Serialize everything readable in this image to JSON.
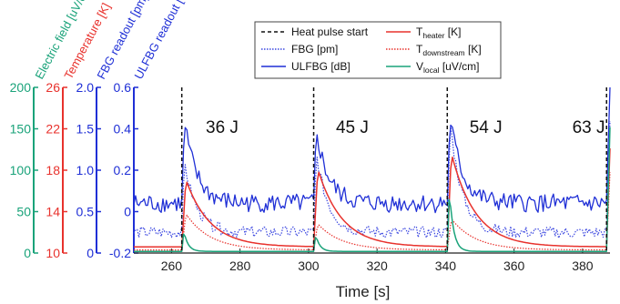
{
  "chart_data": {
    "type": "line",
    "xlabel": "Time [s]",
    "xlim": [
      249,
      388
    ],
    "x_ticks": [
      260,
      280,
      300,
      320,
      340,
      360,
      380
    ],
    "axes": [
      {
        "key": "ef",
        "label": "Electric field [uV/cm]",
        "color": "#1aa37a",
        "lim": [
          0,
          200
        ],
        "ticks": [
          0,
          50,
          100,
          150,
          200
        ]
      },
      {
        "key": "temp",
        "label": "Temperature [K]",
        "color": "#e8322d",
        "lim": [
          10,
          26
        ],
        "ticks": [
          10,
          14,
          18,
          22,
          26
        ]
      },
      {
        "key": "fbg",
        "label": "FBG readout [pm]",
        "color": "#1f2fd6",
        "lim": [
          0.0,
          2.0
        ],
        "ticks": [
          "0",
          "0.5",
          "1.0",
          "1.5",
          "2.0"
        ]
      },
      {
        "key": "ulfbg",
        "label": "ULFBG readout [dB]",
        "color": "#1f2fd6",
        "lim": [
          -0.2,
          0.6
        ],
        "ticks": [
          "-0.2",
          "0",
          "0.2",
          "0.4",
          "0.6"
        ]
      }
    ],
    "pulse_times": [
      263,
      301.5,
      340.5,
      387
    ],
    "annotations": [
      {
        "text": "36 J",
        "x": 270
      },
      {
        "text": "45 J",
        "x": 308
      },
      {
        "text": "54 J",
        "x": 347
      },
      {
        "text": "63 J",
        "x": 377
      }
    ],
    "legend": {
      "placement": "top-right",
      "entries": [
        {
          "key": "pulse",
          "label": "Heat pulse start",
          "sub": "",
          "suffix": "",
          "color": "#111111",
          "style": "dashed"
        },
        {
          "key": "fbg",
          "label": "FBG [pm]",
          "sub": "",
          "suffix": "",
          "color": "#3a46e0",
          "style": "dotted"
        },
        {
          "key": "ulfbg",
          "label": "ULFBG [dB]",
          "sub": "",
          "suffix": "",
          "color": "#1f2fd6",
          "style": "solid"
        },
        {
          "key": "theater",
          "label": "T",
          "sub": "heater",
          "suffix": " [K]",
          "color": "#e8322d",
          "style": "solid"
        },
        {
          "key": "tdown",
          "label": "T",
          "sub": "downstream",
          "suffix": " [K]",
          "color": "#e8322d",
          "style": "dotted"
        },
        {
          "key": "vlocal",
          "label": "V",
          "sub": "local",
          "suffix": " [uV/cm]",
          "color": "#1aa37a",
          "style": "solid"
        }
      ]
    },
    "series": [
      {
        "name": "ULFBG [dB]",
        "axis": "ulfbg",
        "color": "#1f2fd6",
        "style": "solid",
        "width": 1.3,
        "base": 0.04,
        "noise": 0.045,
        "peaks": [
          {
            "t": 263,
            "amp": 0.39
          },
          {
            "t": 301.5,
            "amp": 0.35
          },
          {
            "t": 340.5,
            "amp": 0.42
          }
        ],
        "end_rise": 0.58,
        "seed": 7
      },
      {
        "name": "FBG [pm]",
        "axis": "fbg",
        "color": "#3a46e0",
        "style": "dotted",
        "width": 1.2,
        "base": 0.25,
        "noise": 0.07,
        "peaks": [
          {
            "t": 263,
            "amp": 0.85
          },
          {
            "t": 301.5,
            "amp": 0.95
          },
          {
            "t": 340.5,
            "amp": 1.35
          }
        ],
        "end_rise": 1.3,
        "seed": 13
      },
      {
        "name": "T heater [K]",
        "axis": "temp",
        "color": "#e8322d",
        "style": "solid",
        "width": 1.5,
        "base": 10.6,
        "noise": 0.0,
        "peaks": [
          {
            "t": 263,
            "amp": 6.5
          },
          {
            "t": 301.5,
            "amp": 7.5
          },
          {
            "t": 340.5,
            "amp": 9.0
          }
        ],
        "end_rise": 9.5,
        "seed": 0
      },
      {
        "name": "T downstream [K]",
        "axis": "temp",
        "color": "#e8322d",
        "style": "dotted",
        "width": 1.2,
        "base": 10.3,
        "noise": 0.0,
        "peaks": [
          {
            "t": 263,
            "amp": 3.5
          },
          {
            "t": 301.5,
            "amp": 2.5
          },
          {
            "t": 340.5,
            "amp": 3.0
          }
        ],
        "end_rise": 7.5,
        "seed": 0
      },
      {
        "name": "V local [uV/cm]",
        "axis": "ef",
        "color": "#1aa37a",
        "style": "solid",
        "width": 1.5,
        "base": 2,
        "noise": 0.0,
        "peaks": [
          {
            "t": 263,
            "amp": 25
          },
          {
            "t": 301.5,
            "amp": 20
          },
          {
            "t": 340.5,
            "amp": 75
          }
        ],
        "end_rise": 150,
        "seed": 0
      }
    ]
  }
}
